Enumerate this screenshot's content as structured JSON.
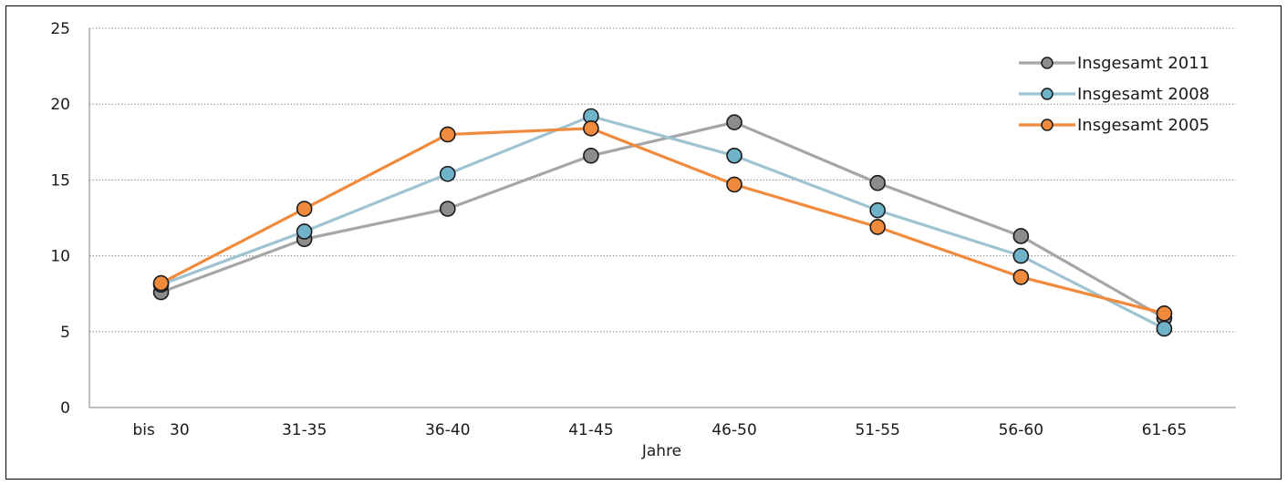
{
  "chart_data": {
    "type": "line",
    "title": "",
    "xlabel": "Jahre",
    "ylabel": "",
    "categories": [
      "bis   30",
      "31-35",
      "36-40",
      "41-45",
      "46-50",
      "51-55",
      "56-60",
      "61-65"
    ],
    "ylim": [
      0,
      25
    ],
    "yticks": [
      0,
      5,
      10,
      15,
      20,
      25
    ],
    "grid": true,
    "legend_position": "top-right",
    "series": [
      {
        "name": "Insgesamt 2011",
        "color": "#a6a6a6",
        "marker_color": "#8c8c8c",
        "values": [
          7.6,
          11.1,
          13.1,
          16.6,
          18.8,
          14.8,
          11.3,
          5.9
        ]
      },
      {
        "name": "Insgesamt 2008",
        "color": "#9fc4d1",
        "marker_color": "#6fb3c9",
        "values": [
          8.1,
          11.6,
          15.4,
          19.2,
          16.6,
          13.0,
          10.0,
          5.2
        ]
      },
      {
        "name": "Insgesamt 2005",
        "color": "#f08a3c",
        "marker_color": "#f08a3c",
        "values": [
          8.2,
          13.1,
          18.0,
          18.4,
          14.7,
          11.9,
          8.6,
          6.2
        ]
      }
    ]
  }
}
